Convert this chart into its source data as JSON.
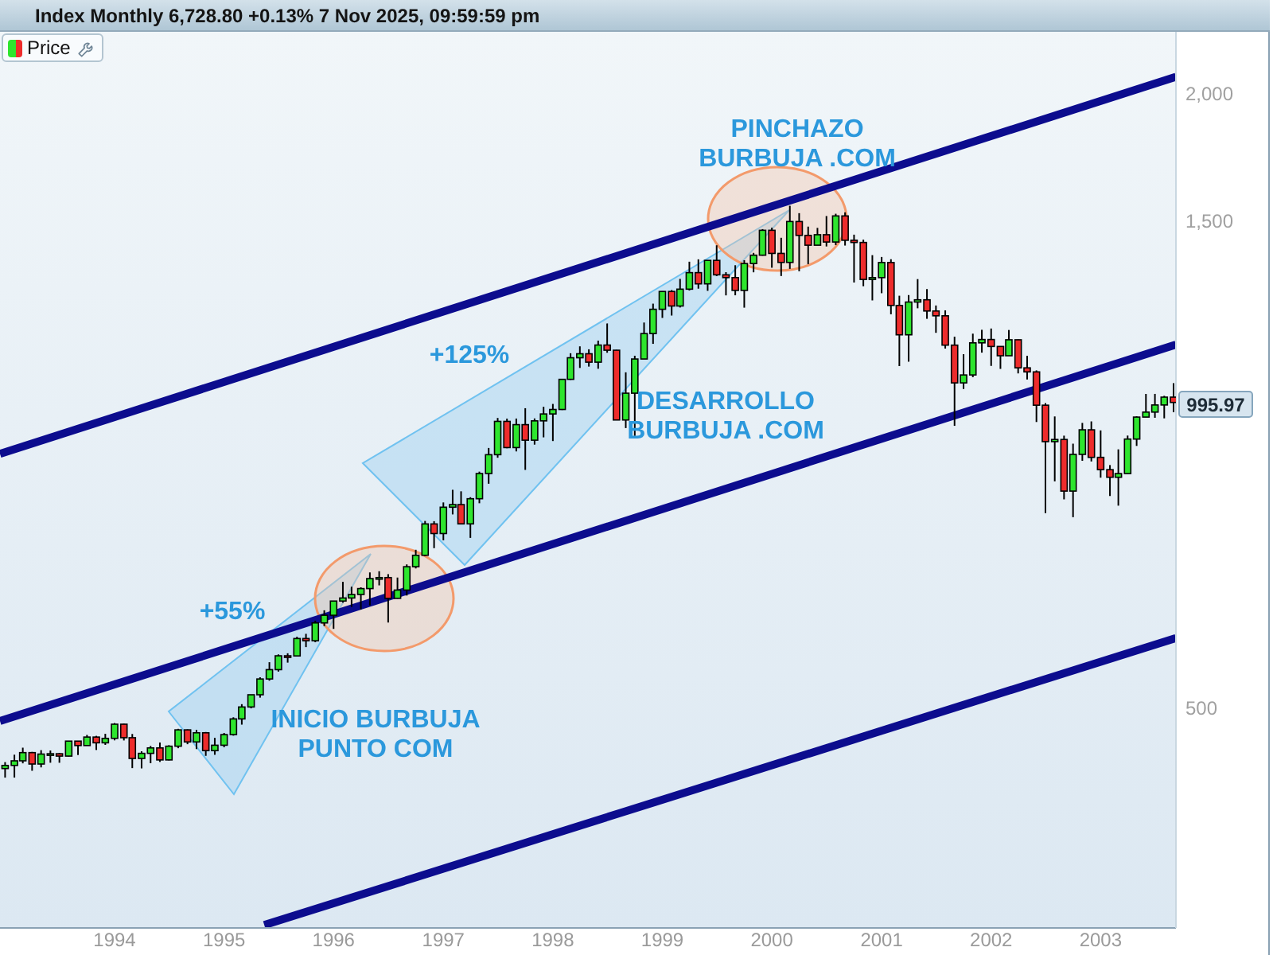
{
  "chart_data": {
    "type": "candlestick",
    "title": "Index Monthly 6,728.80 +0.13% 7 Nov 2025, 09:59:59 pm",
    "x": [
      "1993-01",
      "1993-02",
      "1993-03",
      "1993-04",
      "1993-05",
      "1993-06",
      "1993-07",
      "1993-08",
      "1993-09",
      "1993-10",
      "1993-11",
      "1993-12",
      "1994-01",
      "1994-02",
      "1994-03",
      "1994-04",
      "1994-05",
      "1994-06",
      "1994-07",
      "1994-08",
      "1994-09",
      "1994-10",
      "1994-11",
      "1994-12",
      "1995-01",
      "1995-02",
      "1995-03",
      "1995-04",
      "1995-05",
      "1995-06",
      "1995-07",
      "1995-08",
      "1995-09",
      "1995-10",
      "1995-11",
      "1995-12",
      "1996-01",
      "1996-02",
      "1996-03",
      "1996-04",
      "1996-05",
      "1996-06",
      "1996-07",
      "1996-08",
      "1996-09",
      "1996-10",
      "1996-11",
      "1996-12",
      "1997-01",
      "1997-02",
      "1997-03",
      "1997-04",
      "1997-05",
      "1997-06",
      "1997-07",
      "1997-08",
      "1997-09",
      "1997-10",
      "1997-11",
      "1997-12",
      "1998-01",
      "1998-02",
      "1998-03",
      "1998-04",
      "1998-05",
      "1998-06",
      "1998-07",
      "1998-08",
      "1998-09",
      "1998-10",
      "1998-11",
      "1998-12",
      "1999-01",
      "1999-02",
      "1999-03",
      "1999-04",
      "1999-05",
      "1999-06",
      "1999-07",
      "1999-08",
      "1999-09",
      "1999-10",
      "1999-11",
      "1999-12",
      "2000-01",
      "2000-02",
      "2000-03",
      "2000-04",
      "2000-05",
      "2000-06",
      "2000-07",
      "2000-08",
      "2000-09",
      "2000-10",
      "2000-11",
      "2000-12",
      "2001-01",
      "2001-02",
      "2001-03",
      "2001-04",
      "2001-05",
      "2001-06",
      "2001-07",
      "2001-08",
      "2001-09",
      "2001-10",
      "2001-11",
      "2001-12",
      "2002-01",
      "2002-02",
      "2002-03",
      "2002-04",
      "2002-05",
      "2002-06",
      "2002-07",
      "2002-08",
      "2002-09",
      "2002-10",
      "2002-11",
      "2002-12",
      "2003-01",
      "2003-02",
      "2003-03",
      "2003-04",
      "2003-05",
      "2003-06",
      "2003-07",
      "2003-08",
      "2003-09"
    ],
    "xlim": [
      "1992-12-15",
      "2003-09-09"
    ],
    "xticks": [
      "1994",
      "1995",
      "1996",
      "1997",
      "1998",
      "1999",
      "2000",
      "2001",
      "2002",
      "2003"
    ],
    "ylim": [
      304,
      2300
    ],
    "yticks": [
      500,
      {
        "value": 1500,
        "label": "1,500"
      },
      {
        "value": 2000,
        "label": "2,000"
      }
    ],
    "log": true,
    "legend": "top left",
    "annotations": [
      "PINCHAZO\nBURBUJA .COM",
      "+125%",
      "DESARROLLO\nBURBUJA .COM",
      "+55%",
      "INICIO BURBUJA\nPUNTO COM",
      "995.97"
    ],
    "series": [
      {
        "name": "Price",
        "type": "candlestick",
        "ohlc": [
          [
            435.71,
            442.09,
            426.88,
            438.78
          ],
          [
            438.78,
            449.56,
            426.92,
            443.38
          ],
          [
            443.38,
            456.74,
            440.87,
            451.67
          ],
          [
            451.67,
            452.43,
            433.54,
            440.19
          ],
          [
            440.19,
            454.2,
            436.86,
            450.19
          ],
          [
            450.19,
            453.85,
            441.47,
            450.53
          ],
          [
            450.53,
            451.14,
            441.43,
            448.13
          ],
          [
            448.13,
            463.64,
            447.77,
            463.56
          ],
          [
            463.56,
            463.56,
            449.24,
            458.93
          ],
          [
            458.93,
            470.07,
            458.93,
            467.83
          ],
          [
            467.83,
            469.1,
            454.36,
            461.79
          ],
          [
            461.79,
            471.29,
            459.65,
            466.45
          ],
          [
            466.45,
            482.85,
            464.36,
            481.61
          ],
          [
            481.61,
            482.23,
            464.26,
            467.14
          ],
          [
            467.14,
            471.09,
            436.16,
            445.77
          ],
          [
            445.77,
            453.02,
            435.86,
            450.91
          ],
          [
            450.91,
            458.51,
            440.97,
            456.5
          ],
          [
            456.5,
            462.12,
            442.28,
            444.27
          ],
          [
            444.27,
            459.27,
            443.81,
            458.26
          ],
          [
            458.26,
            476.58,
            456.21,
            475.49
          ],
          [
            475.49,
            475.97,
            460.34,
            462.69
          ],
          [
            462.69,
            475.5,
            455.27,
            472.35
          ],
          [
            472.35,
            473.18,
            448.39,
            453.69
          ],
          [
            453.69,
            466.96,
            449.46,
            459.27
          ],
          [
            459.27,
            472.2,
            457.2,
            470.42
          ],
          [
            470.42,
            489.19,
            469.29,
            487.39
          ],
          [
            487.39,
            503.9,
            481.14,
            500.71
          ],
          [
            500.71,
            514.71,
            499.16,
            514.71
          ],
          [
            514.71,
            535.44,
            511.38,
            533.4
          ],
          [
            533.4,
            553.99,
            531.35,
            544.75
          ],
          [
            544.75,
            563.84,
            542.35,
            562.06
          ],
          [
            562.06,
            565.25,
            553.46,
            561.88
          ],
          [
            561.88,
            586.77,
            561.76,
            584.41
          ],
          [
            584.41,
            590.66,
            573.19,
            581.5
          ],
          [
            581.5,
            608.42,
            579.54,
            605.37
          ],
          [
            605.37,
            622.88,
            601.02,
            615.93
          ],
          [
            615.93,
            636.18,
            597.29,
            636.02
          ],
          [
            636.02,
            664.23,
            633.71,
            640.43
          ],
          [
            640.43,
            656.97,
            627.63,
            645.5
          ],
          [
            645.5,
            656.04,
            624.14,
            654.17
          ],
          [
            654.17,
            678.51,
            629.75,
            669.12
          ],
          [
            669.12,
            680.32,
            658.95,
            670.63
          ],
          [
            670.63,
            675.88,
            605.88,
            639.95
          ],
          [
            639.95,
            670.68,
            639.49,
            651.99
          ],
          [
            651.99,
            690.88,
            643.97,
            687.31
          ],
          [
            687.31,
            714.1,
            684.64,
            705.27
          ],
          [
            705.27,
            762.12,
            703.77,
            757.02
          ],
          [
            757.02,
            761.75,
            716.69,
            740.74
          ],
          [
            740.74,
            794.67,
            729.55,
            786.16
          ],
          [
            786.16,
            817.68,
            773.43,
            790.82
          ],
          [
            790.82,
            814.9,
            756.13,
            757.12
          ],
          [
            757.12,
            804.13,
            733.54,
            801.34
          ],
          [
            801.34,
            851.87,
            793.21,
            848.28
          ],
          [
            848.28,
            898.7,
            828.88,
            885.14
          ],
          [
            885.14,
            961.69,
            879.07,
            954.29
          ],
          [
            954.29,
            960.31,
            898.08,
            899.47
          ],
          [
            899.47,
            960.46,
            891.69,
            947.28
          ],
          [
            947.28,
            983.12,
            855.27,
            914.62
          ],
          [
            914.62,
            960.67,
            905.46,
            955.4
          ],
          [
            955.4,
            986.25,
            920.47,
            970.43
          ],
          [
            970.43,
            992.65,
            912.83,
            980.28
          ],
          [
            980.28,
            1050.02,
            979.13,
            1049.34
          ],
          [
            1049.34,
            1113.08,
            1048.08,
            1101.75
          ],
          [
            1101.75,
            1130.52,
            1076.7,
            1111.75
          ],
          [
            1111.75,
            1123.02,
            1080,
            1090.82
          ],
          [
            1090.82,
            1145.15,
            1074.67,
            1133.84
          ],
          [
            1133.84,
            1190.58,
            1114.3,
            1120.67
          ],
          [
            1120.67,
            1121.5,
            957.28,
            957.28
          ],
          [
            957.28,
            1066.11,
            939.98,
            1017.01
          ],
          [
            1017.01,
            1106.78,
            923.32,
            1098.67
          ],
          [
            1098.67,
            1192.97,
            1098.67,
            1163.63
          ],
          [
            1163.63,
            1244.93,
            1136.89,
            1229.23
          ],
          [
            1229.23,
            1280.37,
            1205.46,
            1279.64
          ],
          [
            1279.64,
            1283.75,
            1211.89,
            1238.33
          ],
          [
            1238.33,
            1316.55,
            1234.16,
            1286.37
          ],
          [
            1286.37,
            1368.62,
            1282.56,
            1335.18
          ],
          [
            1335.18,
            1375.98,
            1287.76,
            1301.84
          ],
          [
            1301.84,
            1372.93,
            1281.41,
            1372.71
          ],
          [
            1372.71,
            1420.33,
            1324.8,
            1328.72
          ],
          [
            1328.72,
            1336.61,
            1268.37,
            1320.41
          ],
          [
            1320.41,
            1357.74,
            1268.65,
            1282.71
          ],
          [
            1282.71,
            1373.17,
            1233.7,
            1362.93
          ],
          [
            1362.93,
            1396.12,
            1336.23,
            1388.91
          ],
          [
            1388.91,
            1473.06,
            1387.38,
            1469.25
          ],
          [
            1469.25,
            1478,
            1350.14,
            1394.46
          ],
          [
            1394.46,
            1444.55,
            1325.07,
            1366.42
          ],
          [
            1366.42,
            1552.87,
            1346.62,
            1498.58
          ],
          [
            1498.58,
            1527.19,
            1339.4,
            1452.43
          ],
          [
            1452.43,
            1481.51,
            1361.09,
            1420.6
          ],
          [
            1420.6,
            1477.26,
            1420.6,
            1454.6
          ],
          [
            1454.6,
            1517.32,
            1416.54,
            1430.83
          ],
          [
            1430.83,
            1525.21,
            1421.07,
            1517.68
          ],
          [
            1517.68,
            1530.09,
            1419.44,
            1436.51
          ],
          [
            1436.51,
            1454.82,
            1305.79,
            1429.4
          ],
          [
            1429.4,
            1438.46,
            1294.9,
            1314.95
          ],
          [
            1314.95,
            1389.06,
            1254.07,
            1320.28
          ],
          [
            1320.28,
            1383.37,
            1274.62,
            1366.01
          ],
          [
            1366.01,
            1376.38,
            1215.44,
            1239.94
          ],
          [
            1239.94,
            1267.42,
            1081.19,
            1160.33
          ],
          [
            1160.33,
            1269.3,
            1091.99,
            1249.46
          ],
          [
            1249.46,
            1315.93,
            1232,
            1255.82
          ],
          [
            1255.82,
            1286.62,
            1203.03,
            1224.42
          ],
          [
            1224.42,
            1239.78,
            1165.54,
            1211.23
          ],
          [
            1211.23,
            1226.27,
            1124.87,
            1133.58
          ],
          [
            1133.58,
            1155.4,
            944.75,
            1040.94
          ],
          [
            1040.94,
            1110.61,
            1026.76,
            1059.78
          ],
          [
            1059.78,
            1163.38,
            1054.31,
            1139.45
          ],
          [
            1139.45,
            1173.62,
            1114.51,
            1148.08
          ],
          [
            1148.08,
            1176.97,
            1081.66,
            1130.2
          ],
          [
            1130.2,
            1130.2,
            1074.36,
            1106.73
          ],
          [
            1106.73,
            1173.03,
            1106.73,
            1147.39
          ],
          [
            1147.39,
            1147.84,
            1063.46,
            1076.92
          ],
          [
            1076.92,
            1106.59,
            1048.96,
            1067.14
          ],
          [
            1067.14,
            1070.74,
            952.92,
            989.82
          ],
          [
            989.82,
            994.46,
            775.68,
            911.62
          ],
          [
            911.62,
            965,
            833.44,
            916.07
          ],
          [
            916.07,
            924.02,
            800.2,
            815.28
          ],
          [
            815.28,
            907.44,
            768.63,
            885.76
          ],
          [
            885.76,
            951.03,
            872.98,
            936.31
          ],
          [
            936.31,
            954.28,
            871.7,
            879.82
          ],
          [
            879.82,
            935.05,
            840.34,
            855.7
          ],
          [
            855.7,
            864.64,
            806.29,
            841.15
          ],
          [
            841.15,
            895.9,
            788.9,
            848.18
          ],
          [
            848.18,
            924.24,
            847.85,
            916.92
          ],
          [
            916.92,
            965.38,
            902.83,
            963.59
          ],
          [
            963.59,
            1015.33,
            963.59,
            974.5
          ],
          [
            974.5,
            1015.41,
            962.1,
            990.31
          ],
          [
            990.31,
            1011.01,
            960.84,
            1008.01
          ],
          [
            1008.01,
            1040.29,
            974.21,
            995.97
          ]
        ],
        "colors": [
          "#2ee52e",
          "#2ee52e",
          "#2ee52e",
          "#ee2c2c",
          "#2ee52e",
          "#2ee52e",
          "#ee2c2c",
          "#2ee52e",
          "#ee2c2c",
          "#2ee52e",
          "#ee2c2c",
          "#2ee52e",
          "#2ee52e",
          "#ee2c2c",
          "#ee2c2c",
          "#2ee52e",
          "#2ee52e",
          "#ee2c2c",
          "#2ee52e",
          "#2ee52e",
          "#ee2c2c",
          "#2ee52e",
          "#ee2c2c",
          "#2ee52e",
          "#2ee52e",
          "#2ee52e",
          "#2ee52e",
          "#2ee52e",
          "#2ee52e",
          "#2ee52e",
          "#2ee52e",
          "#ee2c2c",
          "#2ee52e",
          "#ee2c2c",
          "#2ee52e",
          "#2ee52e",
          "#2ee52e",
          "#2ee52e",
          "#2ee52e",
          "#2ee52e",
          "#2ee52e",
          "#2ee52e",
          "#ee2c2c",
          "#2ee52e",
          "#2ee52e",
          "#2ee52e",
          "#2ee52e",
          "#ee2c2c",
          "#2ee52e",
          "#2ee52e",
          "#ee2c2c",
          "#2ee52e",
          "#2ee52e",
          "#2ee52e",
          "#2ee52e",
          "#ee2c2c",
          "#2ee52e",
          "#ee2c2c",
          "#2ee52e",
          "#2ee52e",
          "#2ee52e",
          "#2ee52e",
          "#2ee52e",
          "#2ee52e",
          "#ee2c2c",
          "#2ee52e",
          "#ee2c2c",
          "#ee2c2c",
          "#2ee52e",
          "#2ee52e",
          "#2ee52e",
          "#2ee52e",
          "#2ee52e",
          "#ee2c2c",
          "#2ee52e",
          "#2ee52e",
          "#ee2c2c",
          "#2ee52e",
          "#ee2c2c",
          "#ee2c2c",
          "#ee2c2c",
          "#2ee52e",
          "#2ee52e",
          "#2ee52e",
          "#ee2c2c",
          "#ee2c2c",
          "#2ee52e",
          "#ee2c2c",
          "#ee2c2c",
          "#2ee52e",
          "#ee2c2c",
          "#2ee52e",
          "#ee2c2c",
          "#ee2c2c",
          "#ee2c2c",
          "#2ee52e",
          "#2ee52e",
          "#ee2c2c",
          "#ee2c2c",
          "#2ee52e",
          "#2ee52e",
          "#ee2c2c",
          "#ee2c2c",
          "#ee2c2c",
          "#ee2c2c",
          "#2ee52e",
          "#2ee52e",
          "#2ee52e",
          "#ee2c2c",
          "#ee2c2c",
          "#2ee52e",
          "#ee2c2c",
          "#ee2c2c",
          "#ee2c2c",
          "#ee2c2c",
          "#2ee52e",
          "#ee2c2c",
          "#2ee52e",
          "#2ee52e",
          "#ee2c2c",
          "#ee2c2c",
          "#ee2c2c",
          "#2ee52e",
          "#2ee52e",
          "#2ee52e",
          "#2ee52e",
          "#2ee52e",
          "#2ee52e",
          "#ee2c2c"
        ]
      },
      {
        "type": "line",
        "color": "#0c0c8e",
        "x": [
          "1992-12-15",
          "2003-09-09"
        ],
        "values": [
          887,
          2078
        ]
      },
      {
        "type": "line",
        "color": "#0c0c8e",
        "x": [
          "1992-12-15",
          "2003-09-09"
        ],
        "values": [
          485,
          1135
        ]
      },
      {
        "type": "line",
        "color": "#0c0c8e",
        "x": [
          "1995-05-15",
          "2003-09-09"
        ],
        "values": [
          306,
          585
        ]
      }
    ]
  }
}
